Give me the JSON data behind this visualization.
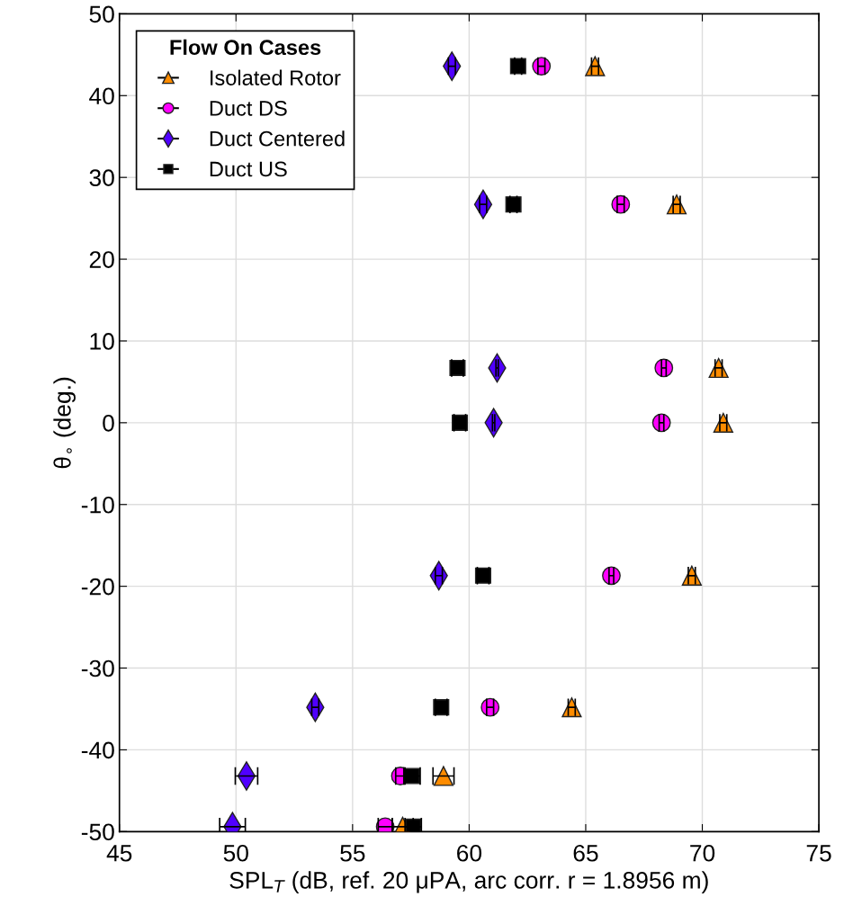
{
  "chart_data": {
    "type": "scatter",
    "xlabel": "SPL$_{T}$ (dB, ref. 20 μPA, arc corr. r = 1.8956 m)",
    "ylabel": "θ$_{∘}$ (deg.)",
    "legend_title": "Flow On Cases",
    "series": [
      {
        "name": "Isolated Rotor",
        "color": "#ff8c00",
        "marker": "triangle",
        "x": [
          65.4,
          68.9,
          70.7,
          70.9,
          69.55,
          64.4,
          58.9,
          57.15
        ],
        "values": [
          43.6,
          26.7,
          6.7,
          0,
          -18.7,
          -34.8,
          -43.2,
          -49.4
        ],
        "xerrors": [
          0.15,
          0.15,
          0.15,
          0.15,
          0.15,
          0.15,
          0.45,
          0.45
        ]
      },
      {
        "name": "Duct DS",
        "color": "#ff00ff",
        "marker": "circle",
        "x": [
          63.1,
          66.5,
          68.35,
          68.25,
          66.1,
          60.9,
          57.05,
          56.4
        ],
        "values": [
          43.6,
          26.7,
          6.7,
          0,
          -18.7,
          -34.8,
          -43.2,
          -49.4
        ],
        "xerrors": [
          0.15,
          0.15,
          0.1,
          0.1,
          0.1,
          0.15,
          0.2,
          0.3
        ]
      },
      {
        "name": "Duct Centered",
        "color": "#5000ff",
        "marker": "diamond",
        "x": [
          59.26,
          60.6,
          61.2,
          61.05,
          58.7,
          53.4,
          50.45,
          49.85
        ],
        "values": [
          43.6,
          26.7,
          6.7,
          0,
          -18.7,
          -34.8,
          -43.2,
          -49.4
        ],
        "xerrors": [
          0.15,
          0.15,
          0.05,
          0.05,
          0.15,
          0.15,
          0.48,
          0.55
        ]
      },
      {
        "name": "Duct US",
        "color": "#000000",
        "marker": "square",
        "x": [
          62.1,
          61.9,
          59.5,
          59.6,
          60.6,
          58.8,
          57.55,
          57.6
        ],
        "values": [
          43.6,
          26.7,
          6.7,
          0,
          -18.7,
          -34.8,
          -43.2,
          -49.4
        ],
        "xerrors": [
          0.15,
          0.15,
          0.25,
          0.25,
          0.25,
          0.25,
          0.35,
          0.35
        ]
      }
    ],
    "xlim": [
      45,
      75
    ],
    "xticks": [
      45,
      50,
      55,
      60,
      65,
      70,
      75
    ],
    "ylim": [
      -50,
      50
    ],
    "yticks": [
      -50,
      -40,
      -30,
      -20,
      -10,
      0,
      10,
      20,
      30,
      40,
      50
    ],
    "grid": true,
    "legend": "top left"
  }
}
